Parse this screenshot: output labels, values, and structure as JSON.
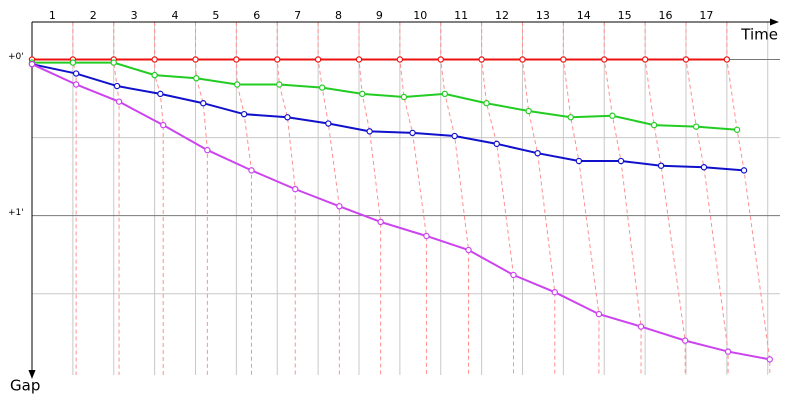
{
  "chart_data": {
    "type": "line",
    "x_label": "Time",
    "y_label": "Gap",
    "categories": [
      "1",
      "2",
      "3",
      "4",
      "5",
      "6",
      "7",
      "8",
      "9",
      "10",
      "11",
      "12",
      "13",
      "14",
      "15",
      "16",
      "17"
    ],
    "xlim": [
      0,
      18.3
    ],
    "ylim": [
      -0.24,
      2.02
    ],
    "yticks": [
      {
        "value": 0,
        "label": "+0'"
      },
      {
        "value": 1,
        "label": "+1'"
      }
    ],
    "ygrid": [
      0,
      0.5,
      1,
      1.5
    ],
    "connector_color": "#ff9090",
    "series": [
      {
        "color": "#ee1111",
        "x": [
          0,
          1,
          2,
          3,
          4,
          5,
          6,
          7,
          8,
          9,
          10,
          11,
          12,
          13,
          14,
          15,
          16,
          17
        ],
        "values": [
          0,
          0,
          0,
          0,
          0,
          0,
          0,
          0,
          0,
          0,
          0,
          0,
          0,
          0,
          0,
          0,
          0,
          0
        ]
      },
      {
        "color": "#22cc22",
        "x": [
          0,
          1,
          2,
          3,
          4.02,
          5.02,
          6.05,
          7.1,
          8.08,
          9.1,
          10.1,
          11.12,
          12.15,
          13.18,
          14.2,
          15.22,
          16.25,
          17.25
        ],
        "values": [
          0.02,
          0.02,
          0.02,
          0.1,
          0.12,
          0.16,
          0.16,
          0.18,
          0.22,
          0.24,
          0.22,
          0.28,
          0.33,
          0.37,
          0.36,
          0.42,
          0.43,
          0.45
        ]
      },
      {
        "color": "#1111cc",
        "x": [
          0,
          1.08,
          2.08,
          3.14,
          4.19,
          5.19,
          6.25,
          7.25,
          8.26,
          9.31,
          10.34,
          11.37,
          12.37,
          13.38,
          14.41,
          15.39,
          16.44,
          17.42
        ],
        "values": [
          0.03,
          0.09,
          0.17,
          0.22,
          0.28,
          0.35,
          0.37,
          0.41,
          0.46,
          0.47,
          0.49,
          0.54,
          0.6,
          0.65,
          0.65,
          0.68,
          0.69,
          0.71
        ]
      },
      {
        "color": "#cc44ee",
        "x": [
          0,
          1.08,
          2.13,
          3.21,
          4.29,
          5.37,
          6.44,
          7.52,
          8.53,
          9.65,
          10.68,
          11.78,
          12.79,
          13.87,
          14.9,
          15.98,
          17.03,
          18.05
        ],
        "values": [
          0.03,
          0.16,
          0.27,
          0.42,
          0.58,
          0.71,
          0.83,
          0.94,
          1.04,
          1.13,
          1.22,
          1.38,
          1.49,
          1.63,
          1.71,
          1.8,
          1.87,
          1.92
        ]
      }
    ]
  }
}
